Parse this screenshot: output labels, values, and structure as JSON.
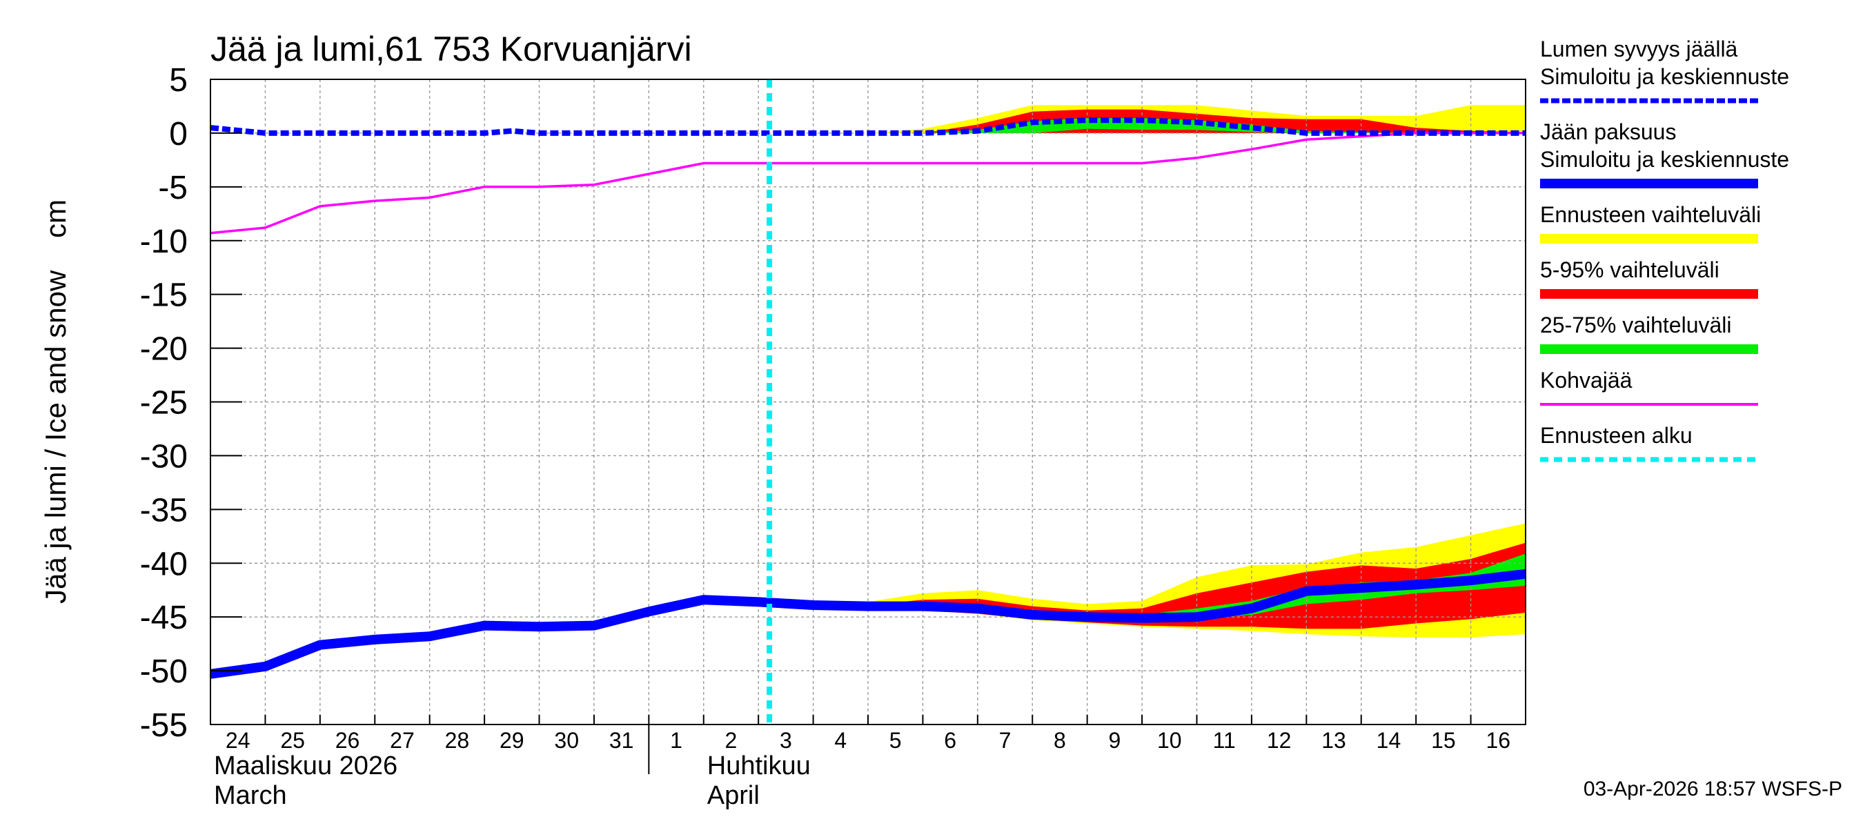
{
  "chart_data": {
    "type": "line",
    "title": "Jää ja lumi,61 753 Korvuanjärvi",
    "ylabel": "Jää ja lumi / Ice and snow    cm",
    "ylim": [
      -55,
      5
    ],
    "yticks": [
      5,
      0,
      -5,
      -10,
      -15,
      -20,
      -25,
      -30,
      -35,
      -40,
      -45,
      -50,
      -55
    ],
    "xlim": [
      0,
      24
    ],
    "x_tick_labels": [
      "24",
      "25",
      "26",
      "27",
      "28",
      "29",
      "30",
      "31",
      "1",
      "2",
      "3",
      "4",
      "5",
      "6",
      "7",
      "8",
      "9",
      "10",
      "11",
      "12",
      "13",
      "14",
      "15",
      "16"
    ],
    "month_labels": [
      {
        "x": 0,
        "fi": "Maaliskuu 2026",
        "en": "March"
      },
      {
        "x": 9,
        "fi": "Huhtikuu",
        "en": "April"
      }
    ],
    "month_divider_x": 8,
    "forecast_start_x": 10.2,
    "timestamp": "03-Apr-2026 18:57 WSFS-P",
    "series": [
      {
        "name": "snow_depth",
        "x": [
          0,
          1,
          2,
          3,
          4,
          5,
          5.5,
          6,
          7,
          8,
          9,
          10,
          11,
          12,
          13,
          14,
          15,
          16,
          17,
          18,
          19,
          20,
          21,
          22,
          23,
          24
        ],
        "values": [
          0.5,
          0,
          0,
          0,
          0,
          0,
          0.2,
          0,
          0,
          0,
          0,
          0,
          0,
          0,
          0,
          0.2,
          1,
          1.2,
          1.2,
          1,
          0.5,
          0,
          0,
          0,
          0,
          0
        ]
      },
      {
        "name": "ice_thickness",
        "x": [
          0,
          1,
          2,
          3,
          4,
          5,
          6,
          7,
          8,
          9,
          10,
          11,
          12,
          13,
          14,
          15,
          16,
          17,
          18,
          19,
          20,
          21,
          22,
          23,
          24
        ],
        "values": [
          -50.3,
          -49.6,
          -47.6,
          -47.1,
          -46.8,
          -45.8,
          -45.9,
          -45.8,
          -44.5,
          -43.4,
          -43.6,
          -43.9,
          -44,
          -44,
          -44.2,
          -44.8,
          -45,
          -45.1,
          -45,
          -44.2,
          -42.6,
          -42.3,
          -42,
          -41.6,
          -41
        ]
      },
      {
        "name": "slush_ice",
        "x": [
          0,
          1,
          2,
          3,
          4,
          5,
          6,
          7,
          8,
          9,
          10,
          11,
          12,
          13,
          14,
          15,
          16,
          17,
          18,
          19,
          20,
          21,
          22,
          23,
          24
        ],
        "values": [
          -9.3,
          -8.8,
          -6.8,
          -6.3,
          -6,
          -5,
          -5,
          -4.8,
          -3.8,
          -2.8,
          -2.8,
          -2.8,
          -2.8,
          -2.8,
          -2.8,
          -2.8,
          -2.8,
          -2.8,
          -2.3,
          -1.5,
          -0.6,
          -0.3,
          0,
          0,
          0
        ]
      }
    ],
    "bands": {
      "x": [
        10.2,
        11,
        12,
        13,
        14,
        15,
        16,
        17,
        18,
        19,
        20,
        21,
        22,
        23,
        24
      ],
      "snow": {
        "yellow": {
          "upper": [
            0,
            0,
            0,
            0.4,
            1.4,
            2.6,
            2.6,
            2.6,
            2.6,
            2.1,
            1.6,
            1.6,
            1.6,
            2.6,
            2.6
          ],
          "lower": [
            0,
            0,
            0,
            0,
            0,
            0,
            0,
            0,
            0,
            0,
            0,
            0,
            0,
            0,
            0
          ]
        },
        "red": {
          "upper": [
            0,
            0,
            0,
            0,
            0.8,
            2.0,
            2.2,
            2.2,
            1.8,
            1.4,
            1.3,
            1.3,
            0.5,
            0.2,
            0.1
          ],
          "lower": [
            0,
            0,
            0,
            0,
            0,
            0,
            0,
            0,
            0,
            0,
            0,
            0,
            0,
            0,
            0
          ]
        },
        "green": {
          "upper": [
            0,
            0,
            0,
            0,
            0.3,
            1.1,
            1.4,
            1.4,
            1.2,
            0.8,
            0.2,
            0.1,
            0,
            0,
            0
          ],
          "lower": [
            0,
            0,
            0,
            0,
            0,
            0,
            0.4,
            0.3,
            0.3,
            0.1,
            0,
            0,
            0,
            0,
            0
          ]
        }
      },
      "ice": {
        "yellow": {
          "upper": [
            -43.6,
            -43.8,
            -43.6,
            -42.8,
            -42.5,
            -43.3,
            -43.8,
            -43.5,
            -41.3,
            -40.2,
            -40.1,
            -39,
            -38.5,
            -37.4,
            -36.3
          ],
          "lower": [
            -43.6,
            -43.9,
            -44.2,
            -44.4,
            -44.7,
            -45.3,
            -45.6,
            -45.9,
            -46.1,
            -46.3,
            -46.6,
            -46.8,
            -46.9,
            -46.9,
            -46.6
          ]
        },
        "red": {
          "upper": [
            -43.6,
            -43.8,
            -43.9,
            -43.4,
            -43.3,
            -44.0,
            -44.4,
            -44.2,
            -42.8,
            -41.8,
            -40.8,
            -40.2,
            -40.5,
            -39.6,
            -38.1
          ],
          "lower": [
            -43.6,
            -43.9,
            -44.1,
            -44.4,
            -44.7,
            -45.2,
            -45.5,
            -45.8,
            -45.9,
            -45.9,
            -46.1,
            -46.1,
            -45.6,
            -45.2,
            -44.6
          ]
        },
        "green": {
          "upper": [
            -43.6,
            -43.8,
            -44,
            -43.9,
            -44,
            -44.7,
            -44.8,
            -44.8,
            -44.2,
            -43.5,
            -42.3,
            -41.8,
            -41.6,
            -40.9,
            -39.1
          ],
          "lower": [
            -43.6,
            -43.9,
            -44,
            -44,
            -44.3,
            -44.9,
            -45.1,
            -45.2,
            -45.2,
            -44.8,
            -43.8,
            -43.4,
            -42.8,
            -42.5,
            -42.1
          ]
        }
      }
    },
    "legend": [
      {
        "label": "Lumen syvyys jäällä",
        "sublabel": "Simuloitu ja keskiennuste",
        "color": "#0000ff",
        "style": "dashed"
      },
      {
        "label": "Jään paksuus",
        "sublabel": "Simuloitu ja keskiennuste",
        "color": "#0000ff",
        "style": "thick"
      },
      {
        "label": "Ennusteen vaihteluväli",
        "color": "#ffff00",
        "style": "band"
      },
      {
        "label": "5-95% vaihteluväli",
        "color": "#ff0000",
        "style": "band"
      },
      {
        "label": "25-75% vaihteluväli",
        "color": "#00ee00",
        "style": "band"
      },
      {
        "label": "Kohvajää",
        "color": "#ff00ff",
        "style": "line"
      },
      {
        "label": "Ennusteen alku",
        "color": "#00eeee",
        "style": "dotted"
      }
    ]
  },
  "colors": {
    "snow_line": "#0000ff",
    "ice_line": "#0000ff",
    "slush_line": "#ff00ff",
    "yellow": "#ffff00",
    "red": "#ff0000",
    "green": "#00ee00",
    "forecast": "#00eeee",
    "grid": "#999999"
  }
}
